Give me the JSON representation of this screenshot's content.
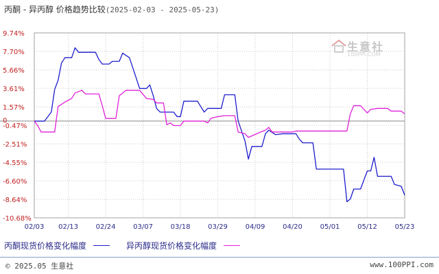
{
  "header": {
    "title": "丙酮 - 异丙醇 价格趋势比较",
    "date_range": "(2025-02-03 - 2025-05-23)"
  },
  "watermark": {
    "text": "生意社",
    "sub": "100PPI.COM"
  },
  "legend": {
    "series1_label": "丙酮现货价格变化幅度",
    "series2_label": "异丙醇现货价格变化幅度"
  },
  "footer": {
    "copyright": "© 2025.05 生意社",
    "site": "www.100PPI.com"
  },
  "colors": {
    "series1": "#1c1ccc",
    "series2": "#e020d8",
    "grid": "#c8c8c8",
    "zero": "#888888"
  },
  "chart_data": {
    "type": "line",
    "y_ticks": [
      "9.74%",
      "7.70%",
      "5.66%",
      "3.61%",
      "1.57%",
      "-0.47%",
      "-2.51%",
      "-4.55%",
      "-6.60%",
      "-8.64%",
      "-10.68%"
    ],
    "y_tick_values": [
      9.74,
      7.7,
      5.66,
      3.61,
      1.57,
      -0.47,
      -2.51,
      -4.55,
      -6.6,
      -8.64,
      -10.68
    ],
    "ylim": [
      -10.68,
      9.74
    ],
    "x_ticks": [
      "02/03",
      "02/13",
      "02/24",
      "03/07",
      "03/18",
      "03/29",
      "04/09",
      "04/20",
      "05/01",
      "05/12",
      "05/23"
    ],
    "x_tick_dates": [
      "2025-02-03",
      "2025-02-13",
      "2025-02-24",
      "2025-03-07",
      "2025-03-18",
      "2025-03-29",
      "2025-04-09",
      "2025-04-20",
      "2025-05-01",
      "2025-05-12",
      "2025-05-23"
    ],
    "xlim": [
      "2025-02-03",
      "2025-05-23"
    ],
    "grid": true,
    "legend_position": "bottom",
    "series": [
      {
        "name": "丙酮现货价格变化幅度",
        "color": "#1c1ccc",
        "points": [
          [
            "2025-02-03",
            0
          ],
          [
            "2025-02-06",
            0
          ],
          [
            "2025-02-07",
            0.5
          ],
          [
            "2025-02-08",
            1.0
          ],
          [
            "2025-02-09",
            3.5
          ],
          [
            "2025-02-10",
            4.5
          ],
          [
            "2025-02-11",
            6.4
          ],
          [
            "2025-02-12",
            7.0
          ],
          [
            "2025-02-14",
            7.0
          ],
          [
            "2025-02-15",
            8.1
          ],
          [
            "2025-02-16",
            7.6
          ],
          [
            "2025-02-21",
            7.6
          ],
          [
            "2025-02-22",
            6.8
          ],
          [
            "2025-02-23",
            6.3
          ],
          [
            "2025-02-25",
            6.3
          ],
          [
            "2025-02-26",
            6.6
          ],
          [
            "2025-02-28",
            6.6
          ],
          [
            "2025-03-01",
            7.5
          ],
          [
            "2025-03-03",
            7.0
          ],
          [
            "2025-03-06",
            3.6
          ],
          [
            "2025-03-08",
            3.6
          ],
          [
            "2025-03-09",
            4.0
          ],
          [
            "2025-03-10",
            2.8
          ],
          [
            "2025-03-11",
            1.4
          ],
          [
            "2025-03-12",
            1.0
          ],
          [
            "2025-03-16",
            1.0
          ],
          [
            "2025-03-17",
            0.5
          ],
          [
            "2025-03-18",
            0.5
          ],
          [
            "2025-03-19",
            2.2
          ],
          [
            "2025-03-23",
            2.2
          ],
          [
            "2025-03-25",
            1.0
          ],
          [
            "2025-03-26",
            1.4
          ],
          [
            "2025-03-30",
            1.4
          ],
          [
            "2025-03-31",
            2.9
          ],
          [
            "2025-04-03",
            2.9
          ],
          [
            "2025-04-04",
            0
          ],
          [
            "2025-04-06",
            -2.2
          ],
          [
            "2025-04-07",
            -4.2
          ],
          [
            "2025-04-08",
            -2.8
          ],
          [
            "2025-04-11",
            -2.8
          ],
          [
            "2025-04-12",
            -1.4
          ],
          [
            "2025-04-13",
            -1.0
          ],
          [
            "2025-04-15",
            -1.5
          ],
          [
            "2025-04-17",
            -1.4
          ],
          [
            "2025-04-21",
            -1.4
          ],
          [
            "2025-04-22",
            -2.0
          ],
          [
            "2025-04-23",
            -2.4
          ],
          [
            "2025-04-26",
            -2.4
          ],
          [
            "2025-04-27",
            -5.3
          ],
          [
            "2025-05-01",
            -5.3
          ],
          [
            "2025-05-05",
            -5.3
          ],
          [
            "2025-05-06",
            -8.9
          ],
          [
            "2025-05-07",
            -8.6
          ],
          [
            "2025-05-08",
            -7.5
          ],
          [
            "2025-05-10",
            -7.5
          ],
          [
            "2025-05-12",
            -5.5
          ],
          [
            "2025-05-13",
            -5.5
          ],
          [
            "2025-05-14",
            -4.0
          ],
          [
            "2025-05-15",
            -6.1
          ],
          [
            "2025-05-19",
            -6.1
          ],
          [
            "2025-05-20",
            -7.0
          ],
          [
            "2025-05-22",
            -7.2
          ],
          [
            "2025-05-23",
            -8.2
          ]
        ]
      },
      {
        "name": "异丙醇现货价格变化幅度",
        "color": "#e020d8",
        "points": [
          [
            "2025-02-03",
            0
          ],
          [
            "2025-02-04",
            -0.5
          ],
          [
            "2025-02-05",
            -1.2
          ],
          [
            "2025-02-09",
            -1.2
          ],
          [
            "2025-02-10",
            1.6
          ],
          [
            "2025-02-12",
            2.1
          ],
          [
            "2025-02-14",
            2.5
          ],
          [
            "2025-02-15",
            3.1
          ],
          [
            "2025-02-17",
            3.4
          ],
          [
            "2025-02-18",
            3.0
          ],
          [
            "2025-02-22",
            3.0
          ],
          [
            "2025-02-23",
            1.7
          ],
          [
            "2025-02-24",
            0.3
          ],
          [
            "2025-02-27",
            0.3
          ],
          [
            "2025-02-28",
            2.8
          ],
          [
            "2025-03-02",
            3.4
          ],
          [
            "2025-03-06",
            3.4
          ],
          [
            "2025-03-08",
            2.5
          ],
          [
            "2025-03-10",
            2.4
          ],
          [
            "2025-03-11",
            2.0
          ],
          [
            "2025-03-13",
            2.0
          ],
          [
            "2025-03-14",
            -0.4
          ],
          [
            "2025-03-15",
            -0.2
          ],
          [
            "2025-03-16",
            -0.5
          ],
          [
            "2025-03-18",
            -0.5
          ],
          [
            "2025-03-19",
            0
          ],
          [
            "2025-03-25",
            0
          ],
          [
            "2025-03-26",
            -0.2
          ],
          [
            "2025-03-27",
            0.3
          ],
          [
            "2025-03-29",
            0.5
          ],
          [
            "2025-03-31",
            0.6
          ],
          [
            "2025-04-03",
            0.6
          ],
          [
            "2025-04-04",
            -1.2
          ],
          [
            "2025-04-06",
            -1.4
          ],
          [
            "2025-04-07",
            -1.8
          ],
          [
            "2025-04-10",
            -1.3
          ],
          [
            "2025-04-12",
            -1.0
          ],
          [
            "2025-04-13",
            -0.7
          ],
          [
            "2025-04-14",
            -1.2
          ],
          [
            "2025-04-20",
            -1.2
          ],
          [
            "2025-04-21",
            -1.1
          ],
          [
            "2025-05-06",
            -1.1
          ],
          [
            "2025-05-07",
            0.8
          ],
          [
            "2025-05-08",
            1.7
          ],
          [
            "2025-05-10",
            1.7
          ],
          [
            "2025-05-12",
            0.9
          ],
          [
            "2025-05-13",
            1.3
          ],
          [
            "2025-05-15",
            1.4
          ],
          [
            "2025-05-18",
            1.4
          ],
          [
            "2025-05-19",
            1.1
          ],
          [
            "2025-05-22",
            1.1
          ],
          [
            "2025-05-23",
            0.8
          ]
        ]
      }
    ]
  }
}
